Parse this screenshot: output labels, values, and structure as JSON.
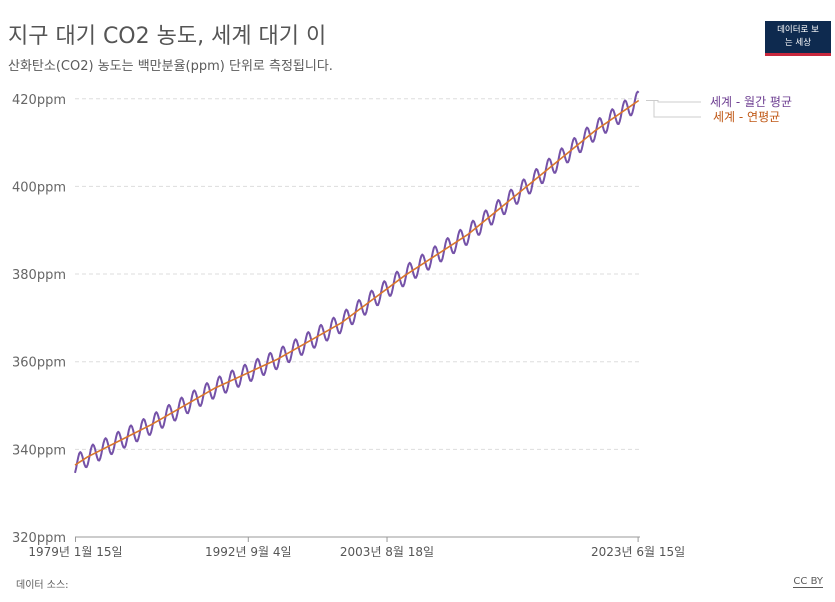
{
  "header": {
    "title": "지구 대기 CO2 농도, 세계 대기 이",
    "subtitle": "산화탄소(CO2) 농도는 백만분율(ppm) 단위로 측정됩니다."
  },
  "logo": {
    "line1": "데이터로 보",
    "line2": "는 세상"
  },
  "footer": {
    "source": "데이터 소스:",
    "license": "CC BY"
  },
  "colors": {
    "monthly": "#7552a8",
    "annual": "#d9762b",
    "grid": "#dddddd"
  },
  "chart_data": {
    "type": "line",
    "y_tick_labels": [
      "320ppm",
      "340ppm",
      "360ppm",
      "380ppm",
      "400ppm",
      "420ppm"
    ],
    "y_ticks": [
      320,
      340,
      360,
      380,
      400,
      420
    ],
    "ylim": [
      320,
      422
    ],
    "xlim": [
      1979.0,
      2023.6
    ],
    "x_ticks": [
      {
        "year": 1979.04,
        "label": "1979년 1월 15일"
      },
      {
        "year": 1992.68,
        "label": "1992년 9월 4일"
      },
      {
        "year": 2003.63,
        "label": "2003년 8월 18일"
      },
      {
        "year": 2023.45,
        "label": "2023년 6월 15일"
      }
    ],
    "grid": true,
    "series": [
      {
        "name": "세계 - 월간 평균",
        "kind": "monthly",
        "seasonal_amplitude_ppm": 2.2,
        "x": [
          1979.0,
          1980.0,
          1985.0,
          1990.0,
          1995.0,
          2000.0,
          2005.0,
          2010.0,
          2015.0,
          2020.0,
          2023.5
        ],
        "y": [
          336.4,
          338.3,
          345.6,
          353.9,
          360.6,
          368.8,
          379.6,
          389.0,
          400.8,
          412.6,
          419.6
        ]
      },
      {
        "name": "세계 - 연평균",
        "kind": "annual",
        "x": [
          1979.0,
          1980.0,
          1985.0,
          1990.0,
          1995.0,
          2000.0,
          2005.0,
          2010.0,
          2015.0,
          2020.0,
          2023.5
        ],
        "y": [
          336.4,
          338.3,
          345.6,
          353.9,
          360.6,
          368.8,
          379.6,
          389.0,
          400.8,
          412.6,
          419.6
        ]
      }
    ]
  }
}
